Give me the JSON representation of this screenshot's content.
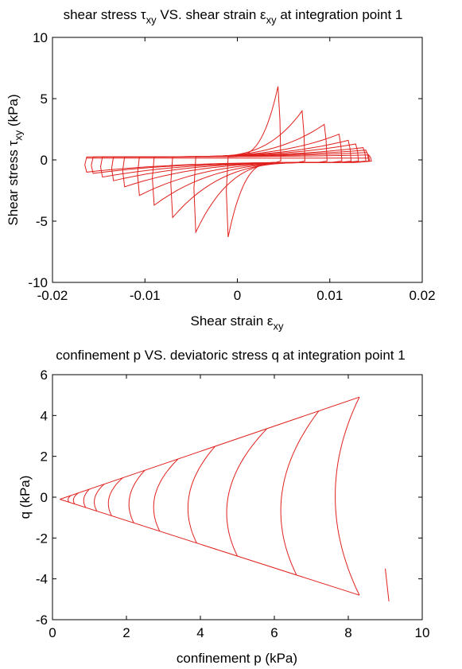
{
  "chart_data": [
    {
      "type": "line",
      "title": {
        "parts": [
          {
            "t": "shear stress "
          },
          {
            "t": "τ",
            "sym": true
          },
          {
            "t": "xy",
            "sub": true
          },
          {
            "t": " VS. shear strain "
          },
          {
            "t": "ε",
            "sym": true
          },
          {
            "t": "xy",
            "sub": true
          },
          {
            "t": " at integration point 1"
          }
        ]
      },
      "xlabel": {
        "parts": [
          {
            "t": "Shear strain "
          },
          {
            "t": "ε",
            "sym": true
          },
          {
            "t": "xy",
            "sub": true
          }
        ]
      },
      "ylabel": {
        "parts": [
          {
            "t": "Shear stress "
          },
          {
            "t": "τ",
            "sym": true
          },
          {
            "t": "xy",
            "sub": true
          },
          {
            "t": " (kPa)"
          }
        ]
      },
      "xlim": [
        -0.02,
        0.02
      ],
      "ylim": [
        -10,
        10
      ],
      "xticks": [
        -0.02,
        -0.01,
        0,
        0.01,
        0.02
      ],
      "xtick_labels": [
        "-0.02",
        "-0.01",
        "0",
        "0.01",
        "0.02"
      ],
      "yticks": [
        -10,
        -5,
        0,
        5,
        10
      ],
      "ytick_labels": [
        "-10",
        "-5",
        "0",
        "5",
        "10"
      ],
      "grid": false,
      "line_color": "#e0211d",
      "cycles": [
        {
          "x_left": -0.0163,
          "x_right": 0.0142,
          "top": 0.4,
          "bottom": -1.0
        },
        {
          "x_left": -0.0156,
          "x_right": 0.014,
          "top": 0.6,
          "bottom": -1.1
        },
        {
          "x_left": -0.0146,
          "x_right": 0.0139,
          "top": 0.8,
          "bottom": -1.4
        },
        {
          "x_left": -0.0134,
          "x_right": 0.0136,
          "top": 1.0,
          "bottom": -1.7
        },
        {
          "x_left": -0.0122,
          "x_right": 0.0128,
          "top": 1.3,
          "bottom": -2.2
        },
        {
          "x_left": -0.0106,
          "x_right": 0.012,
          "top": 1.6,
          "bottom": -2.9
        },
        {
          "x_left": -0.009,
          "x_right": 0.011,
          "top": 2.1,
          "bottom": -3.7
        },
        {
          "x_left": -0.007,
          "x_right": 0.0094,
          "top": 2.9,
          "bottom": -4.7
        },
        {
          "x_left": -0.0045,
          "x_right": 0.007,
          "top": 4.0,
          "bottom": -5.9
        },
        {
          "x_left": -0.001,
          "x_right": 0.0044,
          "top": 6.0,
          "bottom": -6.3
        }
      ]
    },
    {
      "type": "line",
      "title": {
        "parts": [
          {
            "t": "confinement p VS. deviatoric stress q at integration point 1"
          }
        ]
      },
      "xlabel": {
        "parts": [
          {
            "t": "confinement p (kPa)"
          }
        ]
      },
      "ylabel": {
        "parts": [
          {
            "t": "q (kPa)"
          }
        ]
      },
      "xlim": [
        0,
        10
      ],
      "ylim": [
        -6,
        6
      ],
      "xticks": [
        0,
        2,
        4,
        6,
        8,
        10
      ],
      "xtick_labels": [
        "0",
        "2",
        "4",
        "6",
        "8",
        "10"
      ],
      "yticks": [
        -6,
        -4,
        -2,
        0,
        2,
        4,
        6
      ],
      "ytick_labels": [
        "-6",
        "-4",
        "-2",
        "0",
        "2",
        "4",
        "6"
      ],
      "grid": false,
      "line_color": "#e0211d",
      "envelope_upper": [
        [
          0.2,
          -0.1
        ],
        [
          8.3,
          4.9
        ]
      ],
      "envelope_lower": [
        [
          0.2,
          -0.1
        ],
        [
          8.3,
          -4.8
        ]
      ],
      "extra_segment": [
        [
          9.0,
          -3.5
        ],
        [
          9.1,
          -5.1
        ]
      ],
      "loops": [
        {
          "p_apex": 8.3,
          "p_bottom": 8.3
        },
        {
          "p_apex": 7.2,
          "p_bottom": 6.6
        },
        {
          "p_apex": 5.8,
          "p_bottom": 5.0
        },
        {
          "p_apex": 4.4,
          "p_bottom": 3.9
        },
        {
          "p_apex": 3.4,
          "p_bottom": 2.9
        },
        {
          "p_apex": 2.5,
          "p_bottom": 2.2
        },
        {
          "p_apex": 1.9,
          "p_bottom": 1.6
        },
        {
          "p_apex": 1.4,
          "p_bottom": 1.2
        },
        {
          "p_apex": 1.0,
          "p_bottom": 0.9
        },
        {
          "p_apex": 0.7,
          "p_bottom": 0.6
        },
        {
          "p_apex": 0.5,
          "p_bottom": 0.45
        }
      ]
    }
  ]
}
